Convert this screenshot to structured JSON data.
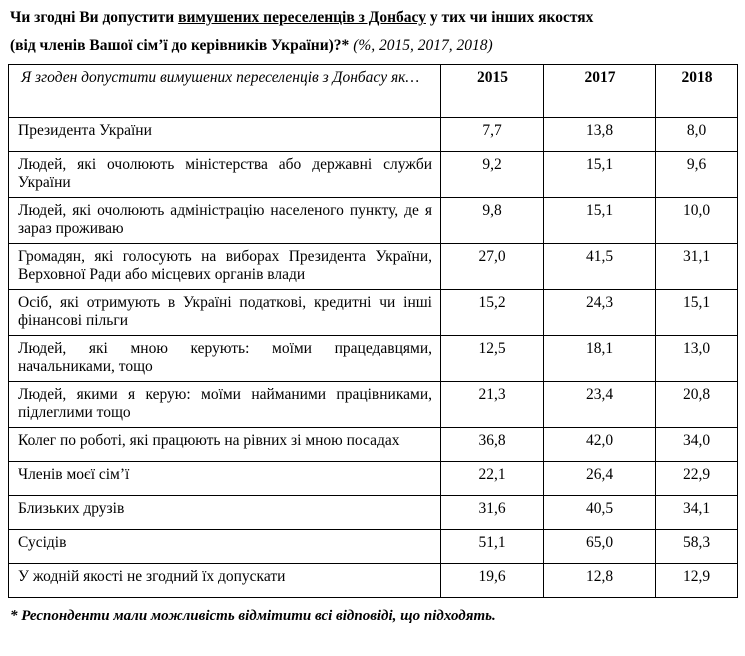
{
  "title": {
    "line1_pre": "Чи згодні Ви допустити ",
    "line1_underlined": "вимушених переселенців з Донбасу",
    "line1_post": " у тих чи інших якостях",
    "line2_bold": "(від членів Вашої сім’ї до керівників України)?*",
    "line2_note": " (%, 2015, 2017, 2018)"
  },
  "table": {
    "header": {
      "question": "Я згоден допустити вимушених переселенців з Донбасу як…",
      "years": [
        "2015",
        "2017",
        "2018"
      ]
    },
    "rows": [
      {
        "label": "Президента України",
        "values": [
          "7,7",
          "13,8",
          "8,0"
        ]
      },
      {
        "label": "Людей, які очолюють міністерства або державні служби України",
        "values": [
          "9,2",
          "15,1",
          "9,6"
        ]
      },
      {
        "label": "Людей, які очолюють адміністрацію населеного пункту, де я зараз проживаю",
        "values": [
          "9,8",
          "15,1",
          "10,0"
        ]
      },
      {
        "label": "Громадян, які голосують на виборах Президента України, Верховної Ради або місцевих органів влади",
        "values": [
          "27,0",
          "41,5",
          "31,1"
        ]
      },
      {
        "label": "Осіб, які отримують в Україні податкові, кредитні чи інші фінансові пільги",
        "values": [
          "15,2",
          "24,3",
          "15,1"
        ]
      },
      {
        "label": "Людей, які мною керують: моїми працедавцями, начальниками, тощо",
        "values": [
          "12,5",
          "18,1",
          "13,0"
        ]
      },
      {
        "label": "Людей, якими я керую: моїми найманими працівниками, підлеглими тощо",
        "values": [
          "21,3",
          "23,4",
          "20,8"
        ]
      },
      {
        "label": "Колег по роботі, які працюють на рівних зі мною посадах",
        "values": [
          "36,8",
          "42,0",
          "34,0"
        ]
      },
      {
        "label": "Членів моєї сім’ї",
        "values": [
          "22,1",
          "26,4",
          "22,9"
        ]
      },
      {
        "label": "Близьких друзів",
        "values": [
          "31,6",
          "40,5",
          "34,1"
        ]
      },
      {
        "label": "Сусідів",
        "values": [
          "51,1",
          "65,0",
          "58,3"
        ]
      },
      {
        "label": "У жодній якості не згодний їх допускати",
        "values": [
          "19,6",
          "12,8",
          "12,9"
        ]
      }
    ]
  },
  "footnote": "* Респонденти мали можливість відмітити всі відповіді, що підходять."
}
